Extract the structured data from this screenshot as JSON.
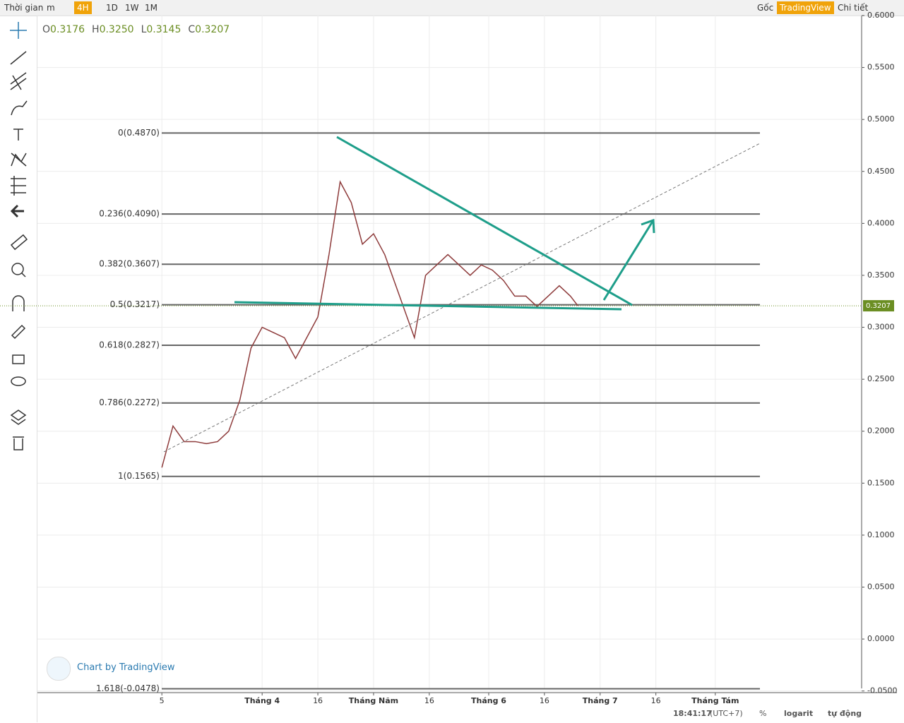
{
  "toolbar": {
    "left": [
      "Thời gian",
      "m",
      "4H",
      "1D",
      "1W",
      "1M"
    ],
    "right": [
      "Gốc",
      "TradingView",
      "Chi tiết"
    ]
  },
  "legend": [
    {
      "key": "O",
      "value": "0.3176"
    },
    {
      "key": "H",
      "value": "0.3250"
    },
    {
      "key": "L",
      "value": "0.3145"
    },
    {
      "key": "C",
      "value": "0.3207"
    }
  ],
  "chart_data": {
    "type": "line",
    "x": [
      4,
      7,
      10,
      13,
      16,
      19,
      22,
      25,
      28,
      31,
      34,
      37,
      40,
      43,
      46,
      49,
      52,
      55,
      58,
      61,
      64,
      67,
      70,
      72,
      75,
      78,
      81,
      84,
      87,
      90,
      93,
      96,
      99,
      102,
      105,
      108,
      111,
      114,
      116
    ],
    "series": [
      {
        "color": "#8e3b3b",
        "values": [
          0.165,
          0.205,
          0.19,
          0.19,
          0.188,
          0.19,
          0.2,
          0.23,
          0.28,
          0.3,
          0.295,
          0.29,
          0.27,
          0.29,
          0.31,
          0.37,
          0.44,
          0.42,
          0.38,
          0.39,
          0.37,
          0.34,
          0.31,
          0.29,
          0.35,
          0.36,
          0.37,
          0.36,
          0.35,
          0.36,
          0.355,
          0.345,
          0.33,
          0.33,
          0.32,
          0.33,
          0.34,
          0.33,
          0.3207
        ]
      }
    ],
    "xlim": [
      -29.5,
      192.4
    ],
    "xticks": [
      {
        "value": 4,
        "label": "5"
      },
      {
        "value": 31,
        "label": "Tháng 4"
      },
      {
        "value": 46,
        "label": "16"
      },
      {
        "value": 61,
        "label": "Tháng Năm"
      },
      {
        "value": 76,
        "label": "16"
      },
      {
        "value": 92,
        "label": "Tháng 6"
      },
      {
        "value": 107,
        "label": "16"
      },
      {
        "value": 122,
        "label": "Tháng 7"
      },
      {
        "value": 137,
        "label": "16"
      },
      {
        "value": 153,
        "label": "Tháng Tám"
      }
    ],
    "ylim": [
      -0.0475,
      0.6
    ],
    "yticks": [
      {
        "value": 0.6,
        "label": "0.6000"
      },
      {
        "value": 0.55,
        "label": "0.5500"
      },
      {
        "value": 0.5,
        "label": "0.5000"
      },
      {
        "value": 0.45,
        "label": "0.4500"
      },
      {
        "value": 0.4,
        "label": "0.4000"
      },
      {
        "value": 0.35,
        "label": "0.3500"
      },
      {
        "value": 0.3,
        "label": "0.3000"
      },
      {
        "value": 0.25,
        "label": "0.2500"
      },
      {
        "value": 0.2,
        "label": "0.2000"
      },
      {
        "value": 0.15,
        "label": "0.1500"
      },
      {
        "value": 0.1,
        "label": "0.1000"
      },
      {
        "value": 0.05,
        "label": "0.0500"
      },
      {
        "value": 0,
        "label": "0.0000"
      },
      {
        "value": -0.05,
        "label": "-0.0500"
      }
    ],
    "grid": true,
    "last_price": {
      "value": 0.3207,
      "label": "0.3207"
    },
    "fib_levels": [
      {
        "value": 0.487,
        "label": "0(0.4870)"
      },
      {
        "value": 0.409,
        "label": "0.236(0.4090)"
      },
      {
        "value": 0.3607,
        "label": "0.382(0.3607)"
      },
      {
        "value": 0.3217,
        "label": "0.5(0.3217)"
      },
      {
        "value": 0.2827,
        "label": "0.618(0.2827)"
      },
      {
        "value": 0.2272,
        "label": "0.786(0.2272)"
      },
      {
        "value": 0.1565,
        "label": "1(0.1565)"
      },
      {
        "value": -0.0478,
        "label": "1.618(-0.0478)"
      }
    ],
    "watermark": "Chart by TradingView"
  },
  "status": {
    "time": "18:41:17",
    "zone": "(UTC+7)",
    "percent": "%",
    "log": "logarit",
    "auto": "tự động"
  }
}
